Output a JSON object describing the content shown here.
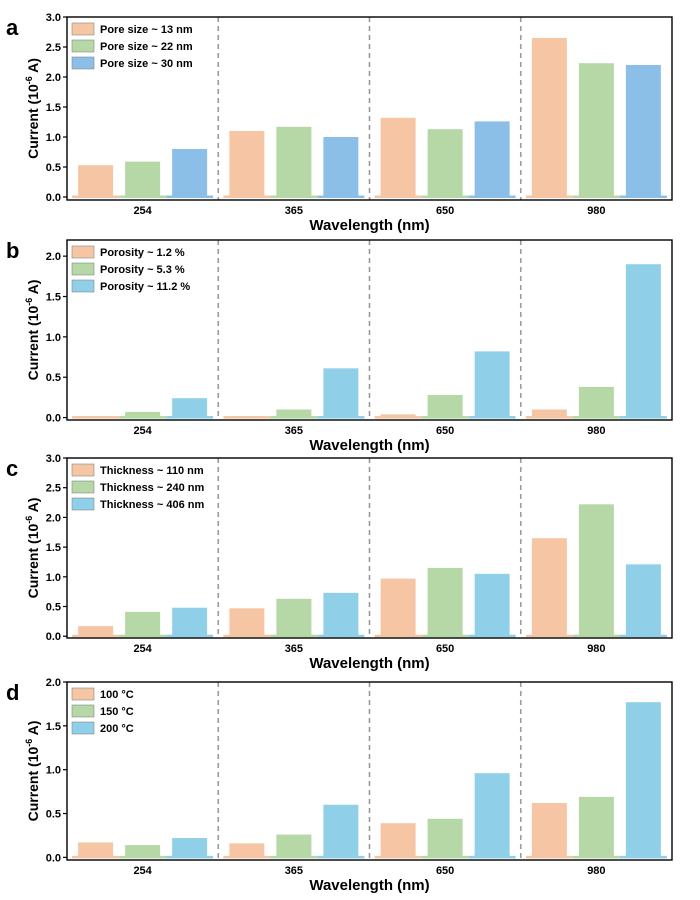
{
  "x_ticks": [
    "254",
    "365",
    "650",
    "980"
  ],
  "colors": {
    "orange": "#f6c6a4",
    "green": "#b5d8a6",
    "blue1": "#8bbfe8",
    "blue2": "#90cfe8",
    "frame": "#000000",
    "divider": "#9a9a9a"
  },
  "panels": [
    {
      "letter": "a",
      "xlabel": "Wavelength (nm)",
      "ylabel": {
        "base": "Current (10",
        "sup": "-6",
        "end": " A)"
      },
      "ylim": [
        -0.05,
        3.0
      ],
      "y_ticks": [
        "0.0",
        "0.5",
        "1.0",
        "1.5",
        "2.0",
        "2.5",
        "3.0"
      ],
      "legend": [
        "Pore size ~ 13 nm",
        "Pore size ~ 22 nm",
        "Pore size ~ 30 nm"
      ],
      "colors": [
        "#f6c6a4",
        "#b5d8a6",
        "#8bbfe8"
      ]
    },
    {
      "letter": "b",
      "xlabel": "Wavelength (nm)",
      "ylabel": {
        "base": "Current (10",
        "sup": "-6",
        "end": " A)"
      },
      "ylim": [
        -0.03,
        2.2
      ],
      "y_ticks": [
        "0.0",
        "0.5",
        "1.0",
        "1.5",
        "2.0"
      ],
      "legend": [
        "Porosity ~ 1.2 %",
        "Porosity ~ 5.3 %",
        "Porosity ~ 11.2 %"
      ],
      "colors": [
        "#f6c6a4",
        "#b5d8a6",
        "#90cfe8"
      ]
    },
    {
      "letter": "c",
      "xlabel": "Wavelength (nm)",
      "ylabel": {
        "base": "Current (10",
        "sup": "-6",
        "end": " A)"
      },
      "ylim": [
        -0.03,
        3.0
      ],
      "y_ticks": [
        "0.0",
        "0.5",
        "1.0",
        "1.5",
        "2.0",
        "2.5",
        "3.0"
      ],
      "legend": [
        "Thickness ~ 110 nm",
        "Thickness ~ 240 nm",
        "Thickness ~ 406 nm"
      ],
      "colors": [
        "#f6c6a4",
        "#b5d8a6",
        "#90cfe8"
      ]
    },
    {
      "letter": "d",
      "xlabel": "Wavelength (nm)",
      "ylabel": {
        "base": "Current (10",
        "sup": "-6",
        "end": " A)"
      },
      "ylim": [
        -0.03,
        2.0
      ],
      "y_ticks": [
        "0.0",
        "0.5",
        "1.0",
        "1.5",
        "2.0"
      ],
      "legend": [
        "100 °C",
        "150 °C",
        "200 °C"
      ],
      "colors": [
        "#f6c6a4",
        "#b5d8a6",
        "#90cfe8"
      ]
    }
  ],
  "chart_data": [
    {
      "type": "bar",
      "title": "",
      "xlabel": "Wavelength (nm)",
      "ylabel": "Current (10-6 A)",
      "ylim": [
        -0.05,
        3.0
      ],
      "grid": false,
      "legend_position": "top-left",
      "categories": [
        "254",
        "365",
        "650",
        "980"
      ],
      "series": [
        {
          "name": "Pore size ~ 13 nm",
          "values": [
            0.53,
            1.1,
            1.32,
            2.65
          ]
        },
        {
          "name": "Pore size ~ 22 nm",
          "values": [
            0.59,
            1.17,
            1.13,
            2.23
          ]
        },
        {
          "name": "Pore size ~ 30 nm",
          "values": [
            0.8,
            1.0,
            1.26,
            2.2
          ]
        }
      ]
    },
    {
      "type": "bar",
      "title": "",
      "xlabel": "Wavelength (nm)",
      "ylabel": "Current (10-6 A)",
      "ylim": [
        -0.03,
        2.2
      ],
      "grid": false,
      "legend_position": "top-left",
      "categories": [
        "254",
        "365",
        "650",
        "980"
      ],
      "series": [
        {
          "name": "Porosity ~ 1.2 %",
          "values": [
            0.01,
            0.02,
            0.04,
            0.1
          ]
        },
        {
          "name": "Porosity ~ 5.3 %",
          "values": [
            0.07,
            0.1,
            0.28,
            0.38
          ]
        },
        {
          "name": "Porosity ~ 11.2 %",
          "values": [
            0.24,
            0.61,
            0.82,
            1.9
          ]
        }
      ]
    },
    {
      "type": "bar",
      "title": "",
      "xlabel": "Wavelength (nm)",
      "ylabel": "Current (10-6 A)",
      "ylim": [
        -0.03,
        3.0
      ],
      "grid": false,
      "legend_position": "top-left",
      "categories": [
        "254",
        "365",
        "650",
        "980"
      ],
      "series": [
        {
          "name": "Thickness ~ 110 nm",
          "values": [
            0.17,
            0.47,
            0.97,
            1.65
          ]
        },
        {
          "name": "Thickness ~ 240 nm",
          "values": [
            0.41,
            0.63,
            1.15,
            2.22
          ]
        },
        {
          "name": "Thickness ~ 406 nm",
          "values": [
            0.48,
            0.73,
            1.05,
            1.21
          ]
        }
      ]
    },
    {
      "type": "bar",
      "title": "",
      "xlabel": "Wavelength (nm)",
      "ylabel": "Current (10-6 A)",
      "ylim": [
        -0.03,
        2.0
      ],
      "grid": false,
      "legend_position": "top-left",
      "categories": [
        "254",
        "365",
        "650",
        "980"
      ],
      "series": [
        {
          "name": "100 °C",
          "values": [
            0.17,
            0.16,
            0.39,
            0.62
          ]
        },
        {
          "name": "150 °C",
          "values": [
            0.14,
            0.26,
            0.44,
            0.69
          ]
        },
        {
          "name": "200 °C",
          "values": [
            0.22,
            0.6,
            0.96,
            1.77
          ]
        }
      ]
    }
  ]
}
